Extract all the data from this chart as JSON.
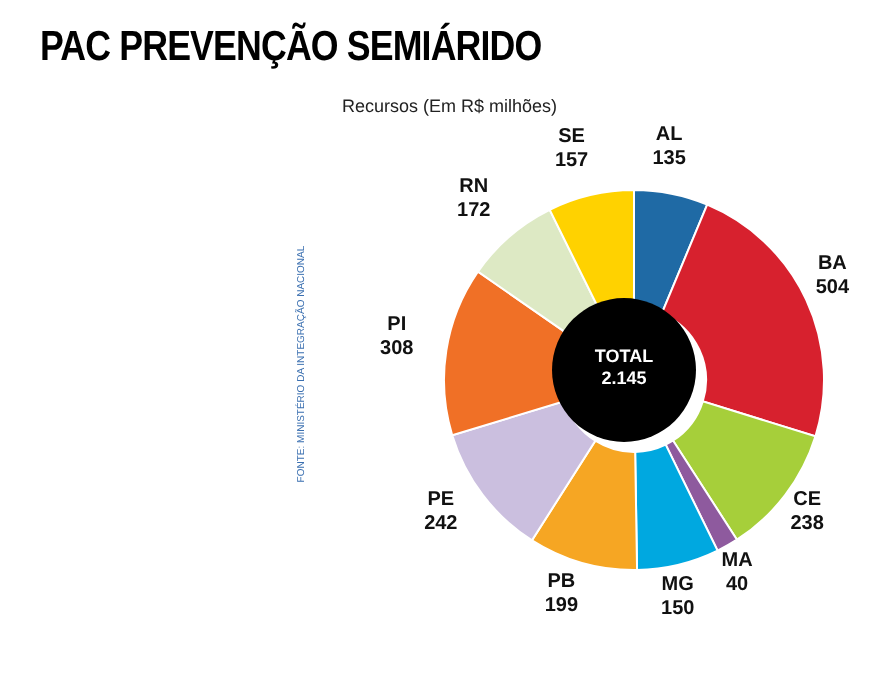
{
  "chart_data": {
    "type": "donut",
    "title": "PAC PREVENÇÃO SEMIÁRIDO",
    "subtitle": "Recursos (Em R$ milhões)",
    "categories": [
      "AL",
      "BA",
      "CE",
      "MA",
      "MG",
      "PB",
      "PE",
      "PI",
      "RN",
      "SE"
    ],
    "values": [
      135,
      504,
      238,
      40,
      150,
      199,
      242,
      308,
      172,
      157
    ],
    "colors": [
      "#1f6aa5",
      "#d7212e",
      "#a6cf3a",
      "#8e5a9e",
      "#00a8e0",
      "#f6a623",
      "#cbbfdf",
      "#f07026",
      "#dde9c4",
      "#ffd200"
    ],
    "data_labels": true,
    "annotations": [
      "TOTAL",
      "2.145",
      "FONTE: MINISTÉRIO DA INTEGRAÇÃO NACIONAL"
    ]
  }
}
